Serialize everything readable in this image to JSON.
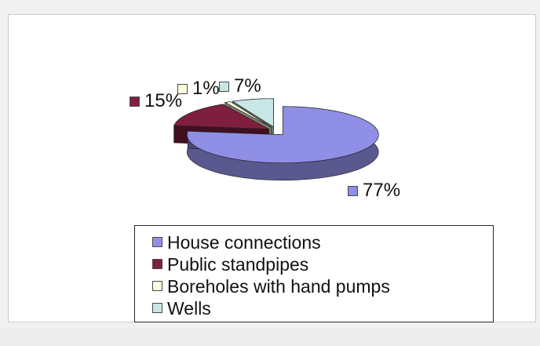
{
  "chart_data": {
    "type": "pie",
    "style": "3d-exploded",
    "categories": [
      "House connections",
      "Public standpipes",
      "Boreholes with hand pumps",
      "Wells"
    ],
    "values": [
      77,
      15,
      1,
      7
    ],
    "value_labels": [
      "77%",
      "15%",
      "1%",
      "7%"
    ],
    "colors": [
      "#8f8fe6",
      "#7f1f3f",
      "#ffffe0",
      "#c9e6e6"
    ],
    "title": "",
    "legend_position": "bottom"
  }
}
